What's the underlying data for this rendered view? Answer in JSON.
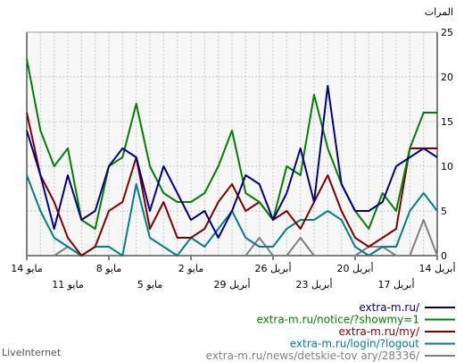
{
  "chart_data": {
    "type": "line",
    "title": "",
    "ylabel": "المرات",
    "ylim": [
      0,
      25
    ],
    "yticks": [
      0,
      5,
      10,
      15,
      20,
      25
    ],
    "grid": true,
    "x_tick_labels_upper": [
      {
        "label": "14 مايو",
        "index": 0
      },
      {
        "label": "8 مايو",
        "index": 6
      },
      {
        "label": "2 مايو",
        "index": 12
      },
      {
        "label": "26 أبريل",
        "index": 18
      },
      {
        "label": "20 أبريل",
        "index": 24
      },
      {
        "label": "14 أبريل",
        "index": 30
      }
    ],
    "x_tick_labels_lower": [
      {
        "label": "11 مايو",
        "index": 3
      },
      {
        "label": "5 مايو",
        "index": 9
      },
      {
        "label": "29 أبريل",
        "index": 15
      },
      {
        "label": "23 أبريل",
        "index": 21
      },
      {
        "label": "17 أبريل",
        "index": 27
      }
    ],
    "series": [
      {
        "name": "extra-m.ru/",
        "color": "#000080",
        "values": [
          14,
          9,
          3,
          9,
          4,
          5,
          10,
          12,
          11,
          5,
          10,
          7,
          4,
          5,
          2,
          5,
          9,
          8,
          4,
          7,
          12,
          6,
          19,
          8,
          5,
          5,
          6,
          10,
          11,
          12,
          11
        ]
      },
      {
        "name": "extra-m.ru/notice/?showmy=1",
        "color": "#008000",
        "values": [
          22,
          14,
          10,
          12,
          4,
          3,
          10,
          11,
          17,
          10,
          7,
          6,
          6,
          7,
          10,
          14,
          7,
          6,
          4,
          10,
          9,
          18,
          12,
          8,
          5,
          3,
          7,
          5,
          12,
          16,
          16
        ]
      },
      {
        "name": "extra-m.ru/my/",
        "color": "#800000",
        "values": [
          16,
          9,
          6,
          2,
          0,
          1,
          5,
          6,
          11,
          3,
          6,
          2,
          2,
          3,
          6,
          8,
          5,
          6,
          4,
          5,
          3,
          6,
          9,
          5,
          2,
          1,
          2,
          3,
          12,
          12,
          12
        ]
      },
      {
        "name": "extra-m.ru/login/?logout",
        "color": "#008080",
        "values": [
          9,
          5,
          2,
          1,
          0,
          1,
          1,
          0,
          8,
          2,
          1,
          0,
          2,
          1,
          3,
          5,
          2,
          1,
          1,
          3,
          4,
          4,
          5,
          4,
          1,
          0,
          1,
          1,
          5,
          7,
          5
        ]
      },
      {
        "name": "extra-m.ru/news/detskie-tov ary/28336/",
        "color": "#808080",
        "values": [
          0,
          0,
          0,
          1,
          0,
          0,
          0,
          0,
          0,
          0,
          0,
          0,
          0,
          0,
          0,
          0,
          0,
          2,
          0,
          0,
          2,
          0,
          0,
          0,
          0,
          1,
          1,
          0,
          0,
          4,
          0
        ]
      }
    ]
  },
  "footer": {
    "brand": "LiveInternet"
  }
}
